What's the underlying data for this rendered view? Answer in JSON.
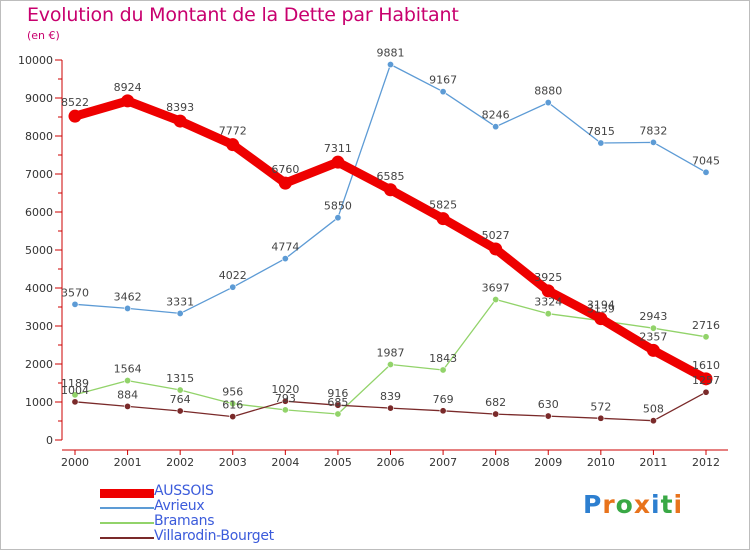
{
  "title": "Evolution du Montant de la Dette par Habitant",
  "unit": "(en €)",
  "brand": {
    "text": "Proxiti",
    "letter_colors": [
      "#2d7fd0",
      "#e8731c",
      "#39a845",
      "#e8731c",
      "#2d7fd0",
      "#39a845",
      "#e8731c"
    ]
  },
  "chart_data": {
    "type": "line",
    "title": "Evolution du Montant de la Dette par Habitant",
    "ylabel": "(en €)",
    "xlabel": "",
    "ylim": [
      0,
      10000
    ],
    "yticks": [
      0,
      1000,
      2000,
      3000,
      4000,
      5000,
      6000,
      7000,
      8000,
      9000,
      10000
    ],
    "categories": [
      "2000",
      "2001",
      "2002",
      "2003",
      "2004",
      "2005",
      "2006",
      "2007",
      "2008",
      "2009",
      "2010",
      "2011",
      "2012"
    ],
    "grid": false,
    "legend_position": "bottom-left",
    "series": [
      {
        "name": "AUSSOIS",
        "color": "#ee0000",
        "thick": true,
        "values": [
          8522,
          8924,
          8393,
          7772,
          6760,
          7311,
          6585,
          5825,
          5027,
          3925,
          3194,
          2357,
          1610
        ]
      },
      {
        "name": "Avrieux",
        "color": "#5d9bd5",
        "thick": false,
        "values": [
          3570,
          3462,
          3331,
          4022,
          4774,
          5850,
          9881,
          9167,
          8246,
          8880,
          7815,
          7832,
          7045
        ]
      },
      {
        "name": "Bramans",
        "color": "#92d36a",
        "thick": false,
        "values": [
          1189,
          1564,
          1315,
          956,
          793,
          685,
          1987,
          1843,
          3697,
          3324,
          3139,
          2943,
          2716
        ]
      },
      {
        "name": "Villarodin-Bourget",
        "color": "#7a2a2a",
        "thick": false,
        "values": [
          1004,
          884,
          764,
          616,
          1020,
          916,
          839,
          769,
          682,
          630,
          572,
          508,
          1257
        ]
      }
    ]
  }
}
